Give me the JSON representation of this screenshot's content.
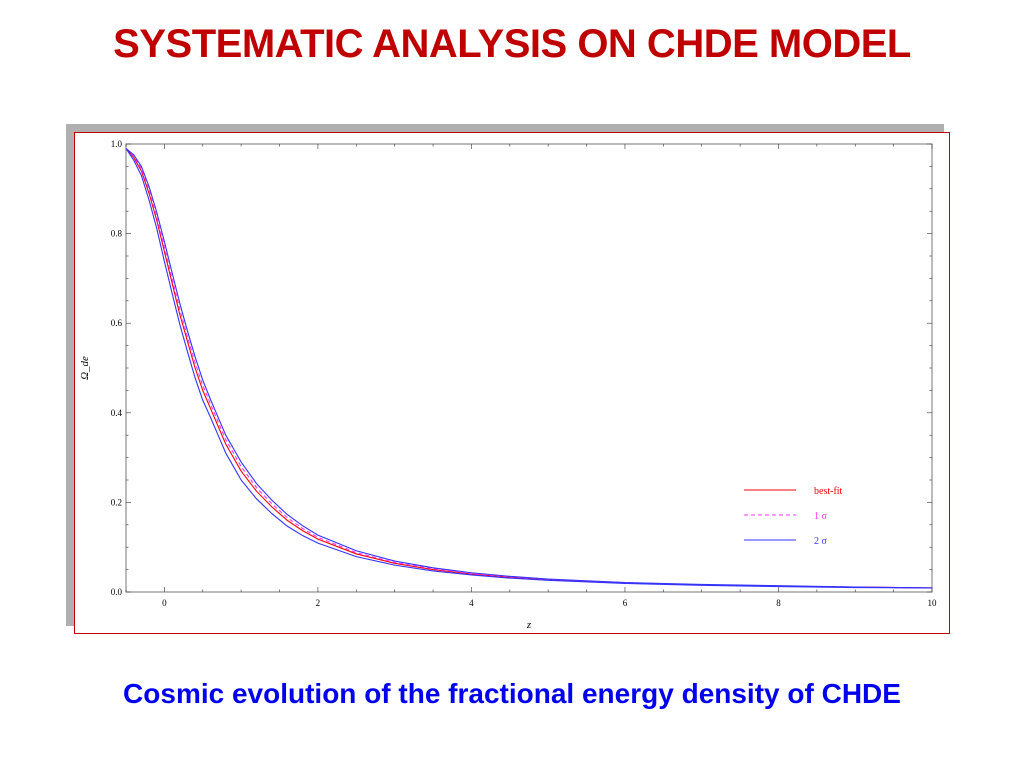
{
  "slide": {
    "title": "SYSTEMATIC ANALYSIS ON CHDE MODEL",
    "caption": "Cosmic evolution of the fractional energy density of CHDE",
    "title_color": "#c00000",
    "caption_color": "#0000ee"
  },
  "chart_data": {
    "type": "line",
    "title": "",
    "xlabel": "z",
    "ylabel": "Ω_de",
    "xlim": [
      -0.5,
      10
    ],
    "ylim": [
      0,
      1.0
    ],
    "xticks": [
      0,
      2,
      4,
      6,
      8,
      10
    ],
    "xtick_labels": [
      "0",
      "2",
      "4",
      "6",
      "8",
      "10"
    ],
    "yticks": [
      0.0,
      0.2,
      0.4,
      0.6,
      0.8,
      1.0
    ],
    "ytick_labels": [
      "0.0",
      "0.2",
      "0.4",
      "0.6",
      "0.8",
      "1.0"
    ],
    "grid": false,
    "legend_position": "lower-right",
    "series": [
      {
        "name": "best-fit",
        "color": "#ff0000",
        "style": "solid",
        "x": [
          -0.5,
          -0.4,
          -0.3,
          -0.2,
          -0.1,
          0,
          0.1,
          0.2,
          0.3,
          0.4,
          0.5,
          0.6,
          0.7,
          0.8,
          0.9,
          1.0,
          1.2,
          1.4,
          1.6,
          1.8,
          2.0,
          2.5,
          3.0,
          3.5,
          4.0,
          4.5,
          5.0,
          6.0,
          7.0,
          8.0,
          9.0,
          10.0
        ],
        "values": [
          0.99,
          0.97,
          0.94,
          0.89,
          0.83,
          0.76,
          0.69,
          0.62,
          0.56,
          0.5,
          0.45,
          0.41,
          0.37,
          0.33,
          0.3,
          0.27,
          0.225,
          0.19,
          0.16,
          0.137,
          0.118,
          0.085,
          0.064,
          0.05,
          0.04,
          0.033,
          0.027,
          0.02,
          0.016,
          0.013,
          0.011,
          0.009
        ]
      },
      {
        "name": "1 σ",
        "color": "#ff33ff",
        "style": "dashed",
        "x": [
          -0.5,
          -0.4,
          -0.3,
          -0.2,
          -0.1,
          0,
          0.1,
          0.2,
          0.3,
          0.4,
          0.5,
          0.6,
          0.7,
          0.8,
          0.9,
          1.0,
          1.2,
          1.4,
          1.6,
          1.8,
          2.0,
          2.5,
          3.0,
          3.5,
          4.0,
          4.5,
          5.0,
          6.0,
          7.0,
          8.0,
          9.0,
          10.0
        ],
        "values": [
          0.99,
          0.973,
          0.945,
          0.897,
          0.838,
          0.77,
          0.7,
          0.632,
          0.57,
          0.512,
          0.461,
          0.42,
          0.38,
          0.34,
          0.31,
          0.28,
          0.233,
          0.197,
          0.166,
          0.142,
          0.122,
          0.088,
          0.066,
          0.052,
          0.041,
          0.034,
          0.028,
          0.021,
          0.016,
          0.013,
          0.011,
          0.009
        ]
      },
      {
        "name": "2 σ",
        "color": "#3333ff",
        "style": "solid",
        "x": [
          -0.5,
          -0.4,
          -0.3,
          -0.2,
          -0.1,
          0,
          0.1,
          0.2,
          0.3,
          0.4,
          0.5,
          0.6,
          0.7,
          0.8,
          0.9,
          1.0,
          1.2,
          1.4,
          1.6,
          1.8,
          2.0,
          2.5,
          3.0,
          3.5,
          4.0,
          4.5,
          5.0,
          6.0,
          7.0,
          8.0,
          9.0,
          10.0
        ],
        "values": [
          0.99,
          0.976,
          0.95,
          0.905,
          0.848,
          0.782,
          0.713,
          0.645,
          0.583,
          0.525,
          0.473,
          0.43,
          0.39,
          0.35,
          0.32,
          0.29,
          0.242,
          0.205,
          0.173,
          0.148,
          0.127,
          0.092,
          0.069,
          0.054,
          0.043,
          0.035,
          0.029,
          0.021,
          0.017,
          0.014,
          0.011,
          0.009
        ]
      },
      {
        "name": "",
        "color": "#3333ff",
        "style": "solid",
        "x": [
          -0.5,
          -0.4,
          -0.3,
          -0.2,
          -0.1,
          0,
          0.1,
          0.2,
          0.3,
          0.4,
          0.5,
          0.6,
          0.7,
          0.8,
          0.9,
          1.0,
          1.2,
          1.4,
          1.6,
          1.8,
          2.0,
          2.5,
          3.0,
          3.5,
          4.0,
          4.5,
          5.0,
          6.0,
          7.0,
          8.0,
          9.0,
          10.0
        ],
        "values": [
          0.99,
          0.964,
          0.93,
          0.875,
          0.812,
          0.738,
          0.667,
          0.598,
          0.537,
          0.478,
          0.428,
          0.39,
          0.35,
          0.31,
          0.28,
          0.25,
          0.208,
          0.175,
          0.147,
          0.126,
          0.109,
          0.079,
          0.06,
          0.047,
          0.038,
          0.031,
          0.026,
          0.019,
          0.015,
          0.012,
          0.01,
          0.009
        ]
      }
    ],
    "legend": [
      {
        "label": "best-fit",
        "color": "#ff0000",
        "style": "solid"
      },
      {
        "label": "1 σ",
        "color": "#ff33ff",
        "style": "dashed"
      },
      {
        "label": "2 σ",
        "color": "#3333ff",
        "style": "solid"
      }
    ]
  }
}
